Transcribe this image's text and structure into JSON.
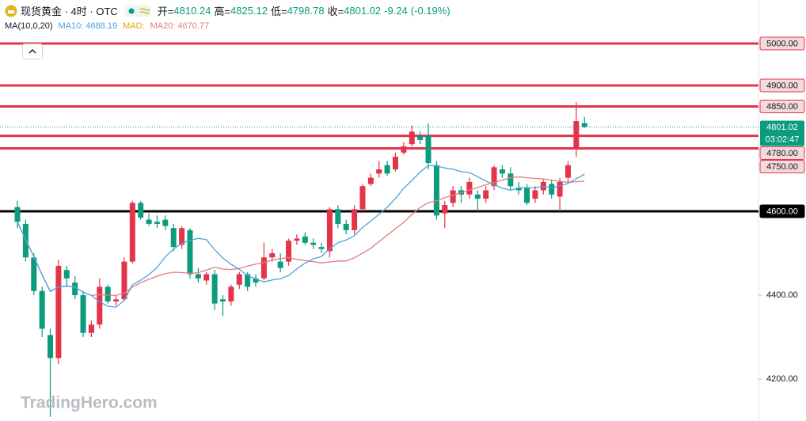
{
  "chart_data": {
    "type": "candlestick",
    "header": {
      "title": "现货黄金 · 4时 · OTC",
      "open_label": "开=",
      "open": 4810.24,
      "high_label": "高=",
      "high": 4825.12,
      "low_label": "低=",
      "low": 4798.78,
      "close_label": "收=",
      "close": 4801.02,
      "change": -9.24,
      "change_pct": "(-0.19%)"
    },
    "ma_legend": {
      "title": "MA(10,0,20)",
      "ma10_label": "MA10:",
      "ma10": 4688.19,
      "mad_label": "MAD:",
      "ma20_label": "MA20:",
      "ma20": 4670.77
    },
    "watermark": "TradingHero.com",
    "countdown": "03:02:47",
    "up_color": "#e3344a",
    "down_color": "#0b9b7d",
    "ma10_color": "#4aa3df",
    "ma20_color": "#e57c7c",
    "ylim": [
      4100,
      5103.8
    ],
    "yticks": [
      {
        "value": 4200,
        "label": "4200.00"
      },
      {
        "value": 4400,
        "label": "4400.00"
      }
    ],
    "levels": [
      {
        "value": 5000,
        "label": "5000.00",
        "color": "#e3344a"
      },
      {
        "value": 4900,
        "label": "4900.00",
        "color": "#e3344a"
      },
      {
        "value": 4850,
        "label": "4850.00",
        "color": "#e3344a"
      },
      {
        "value": 4780,
        "label": "4780.00",
        "color": "#e3344a"
      },
      {
        "value": 4750,
        "label": "4750.00",
        "color": "#e3344a"
      },
      {
        "value": 4600,
        "label": "4600.00",
        "color": "#000000"
      }
    ],
    "open": [
      4610,
      4570,
      4490,
      4410,
      4305,
      4250,
      4460,
      4430,
      4400,
      4310,
      4330,
      4420,
      4385,
      4390,
      4480,
      4620,
      4580,
      4575,
      4580,
      4560,
      4520,
      4555,
      4450,
      4435,
      4450,
      4390,
      4385,
      4425,
      4450,
      4440,
      4440,
      4490,
      4480,
      4480,
      4530,
      4540,
      4525,
      4515,
      4505,
      4605,
      4570,
      4555,
      4605,
      4665,
      4690,
      4710,
      4700,
      4740,
      4760,
      4780,
      4780,
      4710,
      4595,
      4620,
      4650,
      4640,
      4640,
      4630,
      4660,
      4700,
      4690,
      4655,
      4655,
      4630,
      4650,
      4665,
      4635,
      4680,
      4750,
      4810.24
    ],
    "high": [
      4625,
      4580,
      4500,
      4420,
      4320,
      4485,
      4470,
      4445,
      4410,
      4340,
      4440,
      4425,
      4400,
      4490,
      4625,
      4625,
      4595,
      4590,
      4590,
      4570,
      4565,
      4560,
      4465,
      4455,
      4460,
      4400,
      4425,
      4455,
      4455,
      4450,
      4525,
      4510,
      4500,
      4535,
      4545,
      4550,
      4535,
      4525,
      4610,
      4615,
      4580,
      4615,
      4665,
      4690,
      4720,
      4720,
      4740,
      4765,
      4805,
      4790,
      4810,
      4720,
      4625,
      4660,
      4660,
      4680,
      4650,
      4660,
      4710,
      4710,
      4705,
      4670,
      4665,
      4660,
      4675,
      4675,
      4680,
      4720,
      4860,
      4825.12
    ],
    "low": [
      4560,
      4480,
      4400,
      4300,
      4110,
      4235,
      4420,
      4390,
      4300,
      4300,
      4320,
      4380,
      4375,
      4385,
      4475,
      4580,
      4565,
      4560,
      4555,
      4505,
      4510,
      4440,
      4430,
      4425,
      4365,
      4350,
      4375,
      4415,
      4410,
      4420,
      4435,
      4480,
      4455,
      4470,
      4520,
      4520,
      4510,
      4500,
      4490,
      4560,
      4545,
      4545,
      4600,
      4660,
      4680,
      4685,
      4695,
      4735,
      4755,
      4760,
      4700,
      4580,
      4560,
      4610,
      4620,
      4630,
      4600,
      4620,
      4650,
      4680,
      4650,
      4640,
      4615,
      4620,
      4640,
      4630,
      4600,
      4670,
      4730,
      4798.78
    ],
    "close": [
      4575,
      4490,
      4410,
      4320,
      4250,
      4470,
      4440,
      4400,
      4310,
      4330,
      4420,
      4385,
      4390,
      4480,
      4620,
      4585,
      4570,
      4570,
      4565,
      4515,
      4560,
      4450,
      4440,
      4450,
      4380,
      4385,
      4420,
      4450,
      4420,
      4430,
      4490,
      4500,
      4465,
      4530,
      4535,
      4525,
      4520,
      4510,
      4605,
      4570,
      4555,
      4605,
      4660,
      4680,
      4700,
      4690,
      4730,
      4755,
      4790,
      4770,
      4715,
      4590,
      4615,
      4650,
      4640,
      4670,
      4630,
      4650,
      4705,
      4690,
      4660,
      4650,
      4620,
      4650,
      4670,
      4640,
      4670,
      4710,
      4815,
      4801.02
    ]
  }
}
